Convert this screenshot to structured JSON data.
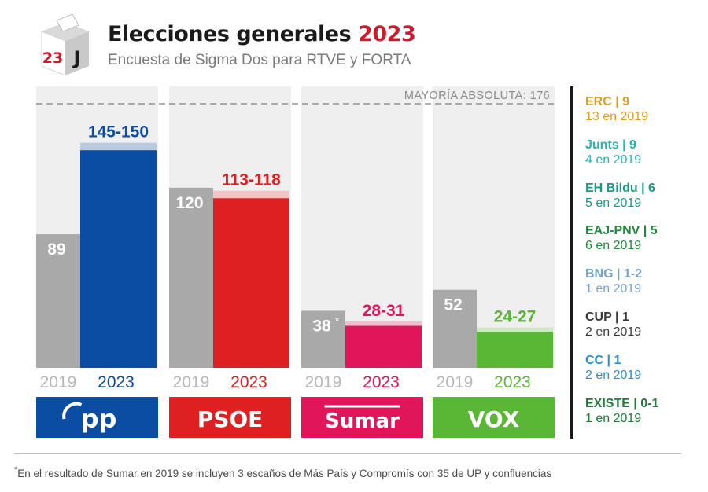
{
  "header": {
    "logo_number": "23",
    "logo_letter": "J",
    "title_main": "Elecciones generales",
    "title_year": "2023",
    "subtitle": "Encuesta de Sigma Dos para RTVE y FORTA"
  },
  "chart_data": {
    "type": "bar",
    "title": "Elecciones generales 2023",
    "subtitle": "Encuesta de Sigma Dos para RTVE y FORTA",
    "reference_line": {
      "label": "MAYORÍA ABSOLUTA: 176",
      "value": 176
    },
    "ylim": [
      0,
      176
    ],
    "grid": false,
    "categories": [
      "PP",
      "PSOE",
      "Sumar",
      "VOX"
    ],
    "series": [
      {
        "name": "2019",
        "values": [
          89,
          120,
          38,
          52
        ]
      },
      {
        "name": "2023",
        "values": [
          [
            145,
            150
          ],
          [
            113,
            118
          ],
          [
            28,
            31
          ],
          [
            24,
            27
          ]
        ]
      }
    ],
    "groups": [
      {
        "party": "PP",
        "logo_text": "pp",
        "color": "#0b4da2",
        "light": "#b9cbe1",
        "v2019": 89,
        "label2019": "89",
        "lo": 145,
        "hi": 150,
        "label2023": "145-150",
        "year2019": "2019",
        "year2023": "2023"
      },
      {
        "party": "PSOE",
        "logo_text": "PSOE",
        "color": "#df2020",
        "light": "#f5c3c3",
        "v2019": 120,
        "label2019": "120",
        "lo": 113,
        "hi": 118,
        "label2023": "113-118",
        "year2019": "2019",
        "year2023": "2023"
      },
      {
        "party": "Sumar",
        "logo_text": "Sumar",
        "color": "#e0155a",
        "light": "#f5bccd",
        "v2019": 38,
        "label2019": "38",
        "note2019": "*",
        "lo": 28,
        "hi": 31,
        "label2023": "28-31",
        "year2019": "2019",
        "year2023": "2023"
      },
      {
        "party": "VOX",
        "logo_text": "VOX",
        "color": "#5ab736",
        "light": "#cfe9c4",
        "v2019": 52,
        "label2019": "52",
        "lo": 24,
        "hi": 27,
        "label2023": "24-27",
        "year2019": "2019",
        "year2023": "2023"
      }
    ],
    "colors": {
      "gray_2019": "#a9a9a9",
      "panel": "#efefef",
      "line": "#7f7f7f"
    }
  },
  "others": [
    {
      "name": "ERC | 9",
      "prev": "13 en 2019",
      "color": "#e49b1e"
    },
    {
      "name": "Junts | 9",
      "prev": "4 en 2019",
      "color": "#22b5b0"
    },
    {
      "name": "EH Bildu | 6",
      "prev": "5 en 2019",
      "color": "#179b86"
    },
    {
      "name": "EAJ-PNV | 5",
      "prev": "6 en 2019",
      "color": "#1f8a3c"
    },
    {
      "name": "BNG | 1-2",
      "prev": "1 en 2019",
      "color": "#75a3cf"
    },
    {
      "name": "CUP | 1",
      "prev": "2 en 2019",
      "color": "#3a3a3a"
    },
    {
      "name": "CC | 1",
      "prev": "2 en 2019",
      "color": "#2891cf"
    },
    {
      "name": "EXISTE | 0-1",
      "prev": "1 en 2019",
      "color": "#1f7a3a"
    }
  ],
  "footnote": {
    "marker": "*",
    "text": "En el resultado de Sumar en 2019 se incluyen 3 escaños de Más País y Compromís con 35 de UP y confluencias"
  }
}
